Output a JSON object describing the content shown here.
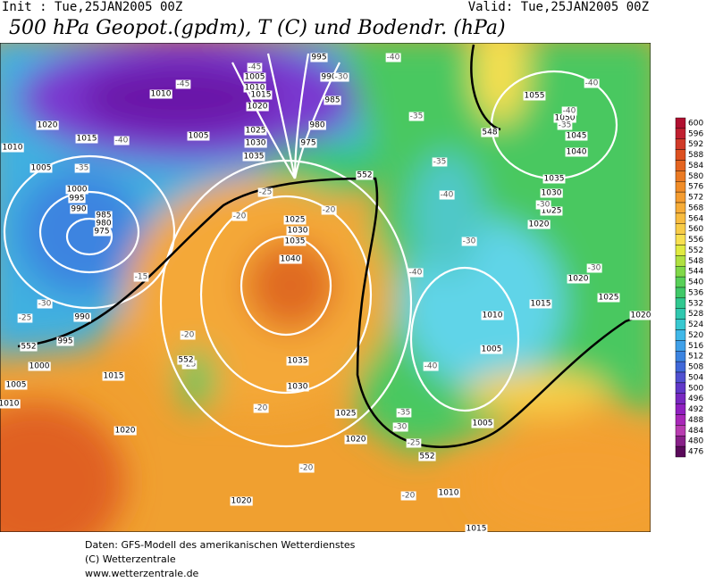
{
  "header": {
    "init": "Init : Tue,25JAN2005 00Z",
    "valid": "Valid: Tue,25JAN2005 00Z",
    "title": "500 hPa Geopot.(gpdm), T (C) und Bodendr. (hPa)"
  },
  "colorbar": {
    "levels": [
      600,
      596,
      592,
      588,
      584,
      580,
      576,
      572,
      568,
      564,
      560,
      556,
      552,
      548,
      544,
      540,
      536,
      532,
      528,
      524,
      520,
      516,
      512,
      508,
      504,
      500,
      496,
      492,
      488,
      484,
      480,
      476
    ],
    "colors": [
      "#b01030",
      "#c02030",
      "#d03a28",
      "#dc5020",
      "#e46420",
      "#ea7a24",
      "#f08c28",
      "#f49c30",
      "#f6ac38",
      "#f8bc40",
      "#f8cc48",
      "#f8e050",
      "#e0ea40",
      "#b0e040",
      "#80d848",
      "#58d058",
      "#40c868",
      "#30c890",
      "#30c8b0",
      "#38c8d0",
      "#40b8e8",
      "#40a0e8",
      "#3c84e0",
      "#4068d8",
      "#5050d0",
      "#6038c8",
      "#7828c0",
      "#9020c0",
      "#a828b8",
      "#b83cb0",
      "#882088",
      "#5a0a5a"
    ]
  },
  "isobars": [
    995,
    990,
    985,
    980,
    975,
    1005,
    1010,
    1015,
    1020,
    1025,
    1030,
    1035,
    1010,
    1020,
    1015,
    1010,
    1005,
    1000,
    995,
    990,
    985,
    980,
    975,
    990,
    995,
    1000,
    1005,
    1010,
    1015,
    1020,
    1025,
    1030,
    1035,
    1040,
    1035,
    1030,
    1025,
    1020,
    1020,
    1010,
    1015,
    1005,
    1005,
    1010,
    1015,
    1020,
    1020,
    1025,
    1020,
    1025,
    1030,
    1035,
    1040,
    1045,
    1050,
    1055,
    1005
  ],
  "isotherms": [
    -45,
    -45,
    -40,
    -40,
    -40,
    -40,
    -35,
    -35,
    -35,
    -35,
    -40,
    -40,
    -40,
    -30,
    -30,
    -30,
    -25,
    -25,
    -30,
    -20,
    -20,
    -15,
    -20,
    -25,
    -20,
    -20,
    -20,
    -25,
    -30,
    -35,
    -30
  ],
  "thickness_labels": [
    552,
    548,
    552,
    552,
    552
  ],
  "footer": [
    "Daten: GFS-Modell des amerikanischen Wetterdienstes",
    "(C) Wetterzentrale",
    "www.wetterzentrale.de"
  ]
}
